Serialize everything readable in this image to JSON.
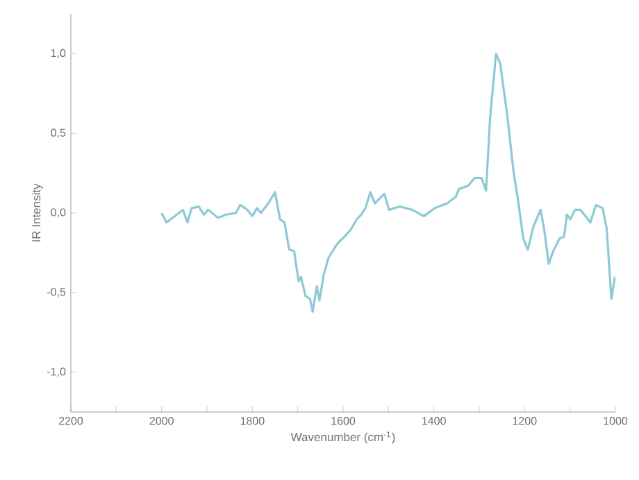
{
  "chart_data": {
    "type": "line",
    "xlabel": "Wavenumber (cm$^{-1}$)",
    "ylabel": "IR Intensity",
    "color": "#8ec9d6",
    "x": [
      2000,
      1989,
      1953,
      1943,
      1934,
      1918,
      1907,
      1897,
      1876,
      1857,
      1836,
      1827,
      1811,
      1800,
      1790,
      1781,
      1765,
      1750,
      1739,
      1729,
      1719,
      1708,
      1698,
      1693,
      1683,
      1673,
      1667,
      1658,
      1652,
      1643,
      1632,
      1621,
      1612,
      1601,
      1591,
      1582,
      1570,
      1560,
      1551,
      1540,
      1530,
      1520,
      1509,
      1499,
      1475,
      1448,
      1422,
      1398,
      1371,
      1352,
      1345,
      1325,
      1310,
      1295,
      1285,
      1276,
      1263,
      1254,
      1239,
      1224,
      1214,
      1203,
      1193,
      1181,
      1165,
      1157,
      1147,
      1137,
      1123,
      1113,
      1107,
      1099,
      1089,
      1077,
      1055,
      1043,
      1028,
      1019,
      1009,
      1001
    ],
    "values": [
      0.0,
      -0.06,
      0.02,
      -0.06,
      0.03,
      0.04,
      -0.01,
      0.02,
      -0.03,
      -0.01,
      0.0,
      0.05,
      0.02,
      -0.02,
      0.03,
      0.0,
      0.06,
      0.13,
      -0.04,
      -0.06,
      -0.23,
      -0.24,
      -0.43,
      -0.4,
      -0.52,
      -0.54,
      -0.62,
      -0.46,
      -0.55,
      -0.39,
      -0.28,
      -0.23,
      -0.19,
      -0.16,
      -0.13,
      -0.1,
      -0.04,
      -0.01,
      0.03,
      0.13,
      0.06,
      0.09,
      0.12,
      0.02,
      0.04,
      0.02,
      -0.02,
      0.03,
      0.06,
      0.1,
      0.15,
      0.17,
      0.22,
      0.22,
      0.14,
      0.6,
      1.0,
      0.94,
      0.63,
      0.25,
      0.07,
      -0.16,
      -0.23,
      -0.09,
      0.02,
      -0.1,
      -0.32,
      -0.24,
      -0.16,
      -0.15,
      -0.01,
      -0.04,
      0.02,
      0.02,
      -0.06,
      0.05,
      0.03,
      -0.1,
      -0.54,
      -0.4
    ],
    "xlim": [
      2200,
      1000
    ],
    "ylim": [
      -1.25,
      1.25
    ],
    "xticks": [
      2200,
      {
        "value": 2100,
        "label": null
      },
      2000,
      {
        "value": 1900,
        "label": null
      },
      1800,
      {
        "value": 1700,
        "label": null
      },
      1600,
      {
        "value": 1500,
        "label": null
      },
      1400,
      {
        "value": 1300,
        "label": null
      },
      1200,
      {
        "value": 1100,
        "label": null
      },
      1000
    ],
    "yticks": [
      {
        "value": -1.0,
        "label": "-1,0"
      },
      {
        "value": -0.5,
        "label": "-0,5"
      },
      {
        "value": 0.0,
        "label": "0,0"
      },
      {
        "value": 0.5,
        "label": "0,5"
      },
      {
        "value": 1.0,
        "label": "1,0"
      }
    ],
    "marker": "none",
    "line_style": "solid"
  }
}
